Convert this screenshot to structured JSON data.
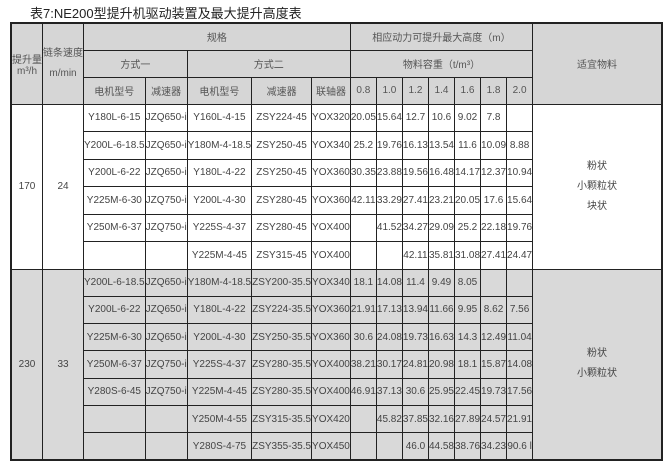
{
  "title": "表7:NE200型提升机驱动装置及最大提升高度表",
  "headers": {
    "capacity": "提升量",
    "capacity_unit": "m³/h",
    "chain_speed": "链条速度",
    "chain_speed_unit": "m/min",
    "spec": "规格",
    "mode1": "方式一",
    "mode2": "方式二",
    "motor1": "电机型号",
    "reducer1": "减速器",
    "motor2": "电机型号",
    "reducer2": "减速器",
    "coupling": "联轴器",
    "max_height": "相应动力可提升最大高度（m）",
    "density": "物料容重（t/m³）",
    "densities": [
      "0.8",
      "1.0",
      "1.2",
      "1.4",
      "1.6",
      "1.8",
      "2.0"
    ],
    "material": "适宜物料"
  },
  "groups": [
    {
      "capacity": "170",
      "speed": "24",
      "material": [
        "粉状",
        "小颗粒状",
        "块状"
      ],
      "rows": [
        [
          "Y180L-6-15",
          "JZQ650-i",
          "Y160L-4-15",
          "ZSY224-45",
          "YOX320",
          "20.05",
          "15.64",
          "12.7",
          "10.6",
          "9.02",
          "7.8",
          ""
        ],
        [
          "Y200L-6-18.5",
          "JZQ650-i",
          "Y180M-4-18.5",
          "ZSY250-45",
          "YOX340",
          "25.2",
          "19.76",
          "16.13",
          "13.54",
          "11.6",
          "10.09",
          "8.88"
        ],
        [
          "Y200L-6-22",
          "JZQ650-i",
          "Y180L-4-22",
          "ZSY250-45",
          "YOX360",
          "30.35",
          "23.88",
          "19.56",
          "16.48",
          "14.17",
          "12.37",
          "10.94"
        ],
        [
          "Y225M-6-30",
          "JZQ750-i",
          "Y200L-4-30",
          "ZSY280-45",
          "YOX360",
          "42.11",
          "33.29",
          "27.41",
          "23.21",
          "20.05",
          "17.6",
          "15.64"
        ],
        [
          "Y250M-6-37",
          "JZQ750-i",
          "Y225S-4-37",
          "ZSY280-45",
          "YOX400",
          "",
          "41.52",
          "34.27",
          "29.09",
          "25.2",
          "22.18",
          "19.76"
        ],
        [
          "",
          "",
          "Y225M-4-45",
          "ZSY315-45",
          "YOX400",
          "",
          "",
          "42.11",
          "35.81",
          "31.08",
          "27.41",
          "24.47"
        ]
      ]
    },
    {
      "capacity": "230",
      "speed": "33",
      "material": [
        "粉状",
        "小颗粒状"
      ],
      "rows": [
        [
          "Y200L-6-18.5",
          "JZQ650-i",
          "Y180M-4-18.5",
          "ZSY200-35.5",
          "YOX340",
          "18.1",
          "14.08",
          "11.4",
          "9.49",
          "8.05",
          "",
          ""
        ],
        [
          "Y200L-6-22",
          "JZQ650-i",
          "Y180L-4-22",
          "ZSY224-35.5",
          "YOX360",
          "21.91",
          "17.13",
          "13.94",
          "11.66",
          "9.95",
          "8.62",
          "7.56"
        ],
        [
          "Y225M-6-30",
          "JZQ650-i",
          "Y200L-4-30",
          "ZSY250-35.5",
          "YOX360",
          "30.6",
          "24.08",
          "19.73",
          "16.63",
          "14.3",
          "12.49",
          "11.04"
        ],
        [
          "Y250M-6-37",
          "JZQ750-i",
          "Y225S-4-37",
          "ZSY280-35.5",
          "YOX400",
          "38.21",
          "30.17",
          "24.81",
          "20.98",
          "18.1",
          "15.87",
          "14.08"
        ],
        [
          "Y280S-6-45",
          "JZQ750-i",
          "Y225M-4-45",
          "ZSY280-35.5",
          "YOX400",
          "46.91",
          "37.13",
          "30.6",
          "25.95",
          "22.45",
          "19.73",
          "17.56"
        ],
        [
          "",
          "",
          "Y250M-4-55",
          "ZSY315-35.5",
          "YOX420",
          "",
          "45.82",
          "37.85",
          "32.16",
          "27.89",
          "24.57",
          "21.91"
        ],
        [
          "",
          "",
          "Y280S-4-75",
          "ZSY355-35.5",
          "YOX450",
          "",
          "",
          "46.0",
          "44.58",
          "38.76",
          "34.23",
          "90.6 l"
        ]
      ]
    }
  ]
}
